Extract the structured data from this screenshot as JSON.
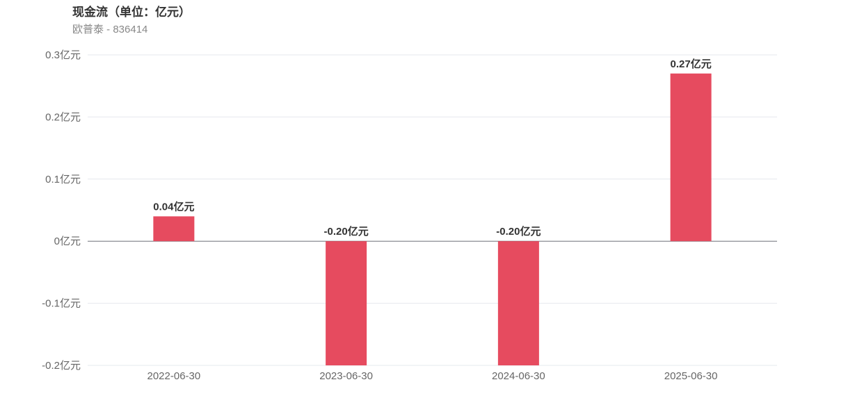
{
  "title": "现金流（单位：亿元）",
  "subtitle": "欧普泰 - 836414",
  "chart_data": {
    "type": "bar",
    "title": "现金流（单位：亿元）",
    "subtitle": "欧普泰 - 836414",
    "categories": [
      "2022-06-30",
      "2023-06-30",
      "2024-06-30",
      "2025-06-30"
    ],
    "values": [
      0.04,
      -0.2,
      -0.2,
      0.27
    ],
    "data_labels": [
      "0.04亿元",
      "-0.20亿元",
      "-0.20亿元",
      "0.27亿元"
    ],
    "ylim": [
      -0.2,
      0.3
    ],
    "yticks": [
      0.3,
      0.2,
      0.1,
      0,
      -0.1,
      -0.2
    ],
    "ytick_labels": [
      "0.3亿元",
      "0.2亿元",
      "0.1亿元",
      "0亿元",
      "-0.1亿元",
      "-0.2亿元"
    ],
    "grid": true,
    "bar_color": "#e64b5f",
    "xlabel": "",
    "ylabel": ""
  }
}
